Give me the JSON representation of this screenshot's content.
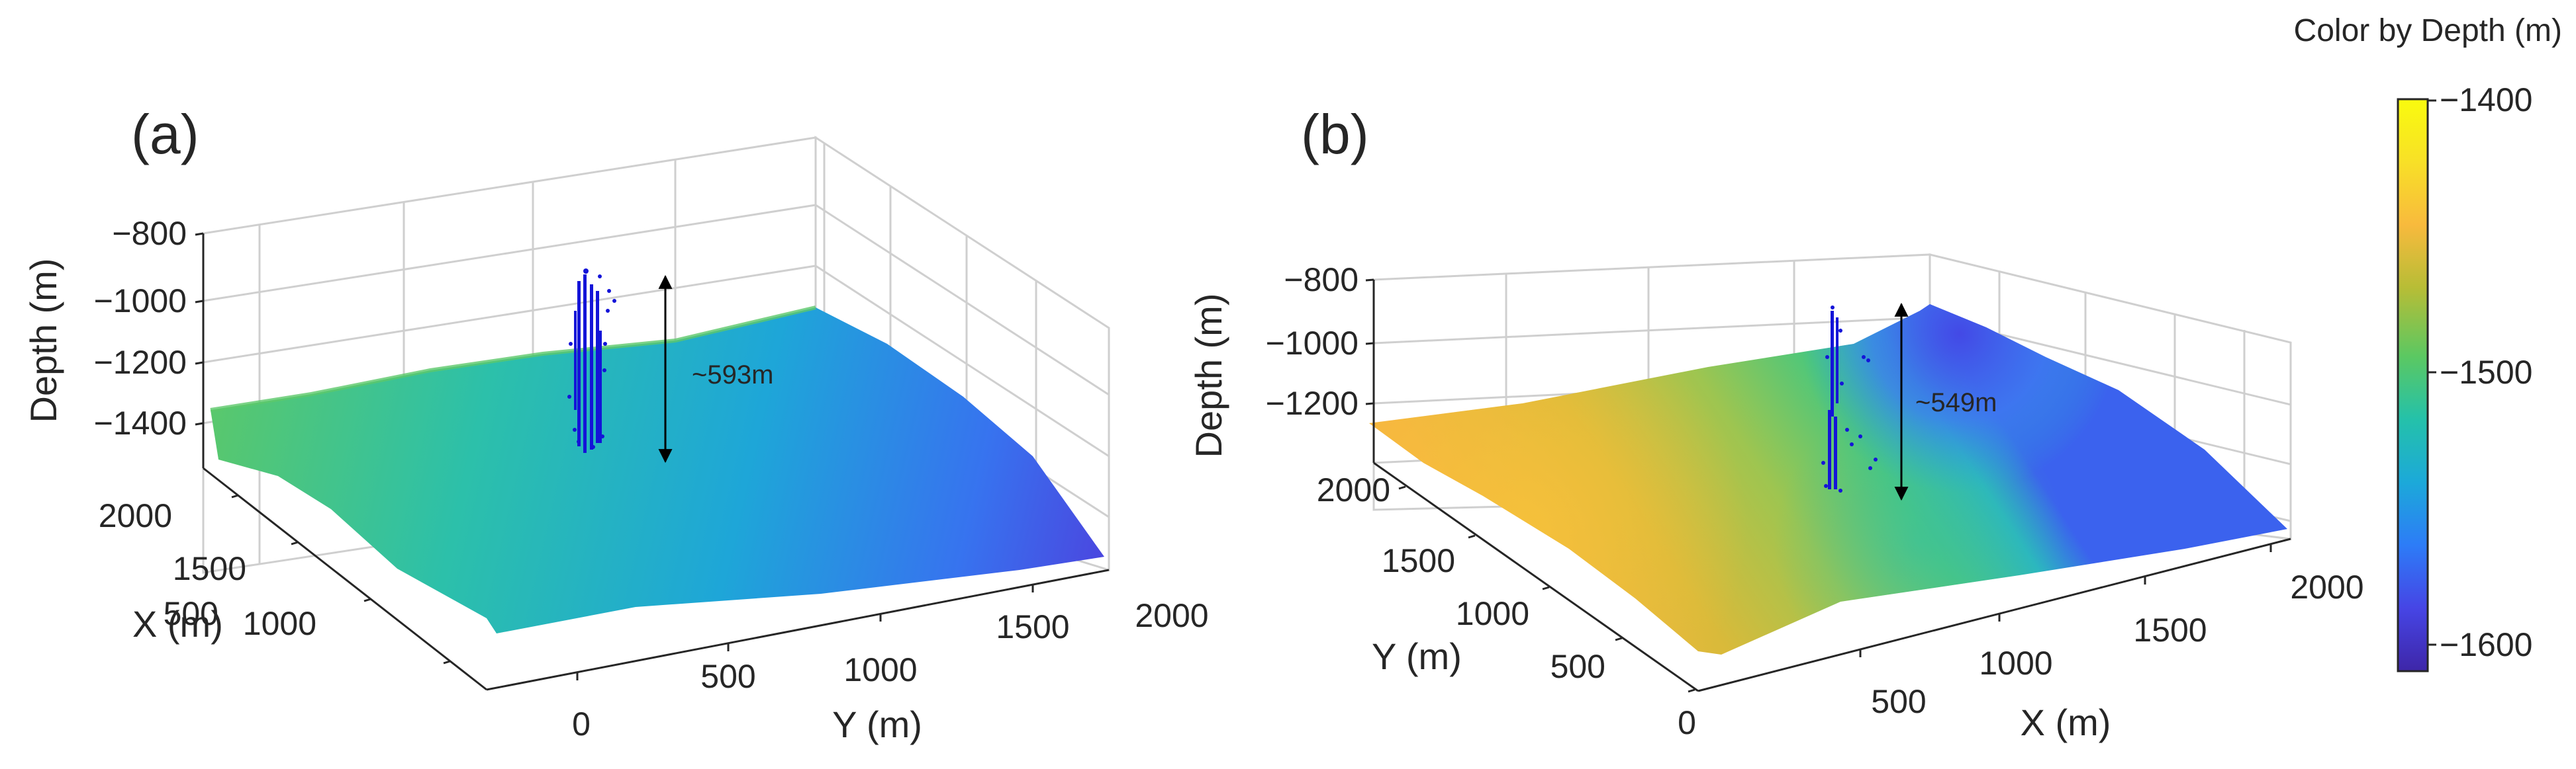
{
  "chart_data": {
    "type": "3d-surface",
    "colorbar": {
      "title": "Color by Depth (m)",
      "range": [
        -1620,
        -1400
      ],
      "ticks": [
        "−1400",
        "−1500",
        "−1600"
      ],
      "colormap": [
        "#3e26a8",
        "#4645e5",
        "#2d7cf7",
        "#1ca9d9",
        "#24c1aa",
        "#5bc862",
        "#b7bd36",
        "#f8ba3d",
        "#f8e027",
        "#f9fb0e"
      ]
    },
    "panels": [
      {
        "id": "a",
        "label": "(a)",
        "zlabel": "Depth (m)",
        "xlabel": "X (m)",
        "ylabel": "Y (m)",
        "zticks": [
          "−800",
          "−1000",
          "−1200",
          "−1400"
        ],
        "xticks": [
          "500",
          "1000",
          "1500",
          "2000"
        ],
        "yticks": [
          "0",
          "500",
          "1000",
          "1500",
          "2000"
        ],
        "annotation": "~593m",
        "vertical_extent_m": 593
      },
      {
        "id": "b",
        "label": "(b)",
        "zlabel": "Depth (m)",
        "xlabel": "X (m)",
        "ylabel": "Y (m)",
        "zticks": [
          "−800",
          "−1000",
          "−1200"
        ],
        "xticks": [
          "500",
          "1000",
          "1500",
          "2000"
        ],
        "yticks": [
          "0",
          "500",
          "1000",
          "1500",
          "2000"
        ],
        "annotation": "~549m",
        "vertical_extent_m": 549
      }
    ]
  },
  "colors": {
    "events": "#1414d8",
    "grid": "#cfcfcf",
    "axis": "#262626"
  }
}
